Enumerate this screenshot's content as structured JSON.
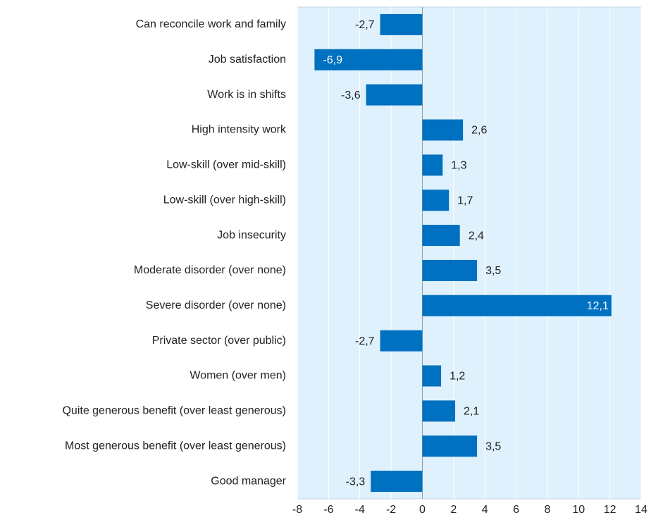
{
  "chart_data": {
    "type": "bar",
    "orientation": "horizontal",
    "categories": [
      "Can reconcile work and family",
      "Job satisfaction",
      "Work is in shifts",
      "High intensity work",
      "Low-skill (over mid-skill)",
      "Low-skill (over high-skill)",
      "Job insecurity",
      "Moderate disorder (over none)",
      "Severe disorder (over none)",
      "Private sector (over public)",
      "Women (over men)",
      "Quite generous benefit (over least generous)",
      "Most generous benefit (over least generous)",
      "Good manager"
    ],
    "values": [
      -2.7,
      -6.9,
      -3.6,
      2.6,
      1.3,
      1.7,
      2.4,
      3.5,
      12.1,
      -2.7,
      1.2,
      2.1,
      3.5,
      -3.3
    ],
    "value_labels": [
      "-2,7",
      "-6,9",
      "-3,6",
      "2,6",
      "1,3",
      "1,7",
      "2,4",
      "3,5",
      "12,1",
      "-2,7",
      "1,2",
      "2,1",
      "3,5",
      "-3,3"
    ],
    "color": "#0070c0",
    "xlim": [
      -8,
      14
    ],
    "xticks": [
      -8,
      -6,
      -4,
      -2,
      0,
      2,
      4,
      6,
      8,
      10,
      12,
      14
    ],
    "grid": true
  }
}
